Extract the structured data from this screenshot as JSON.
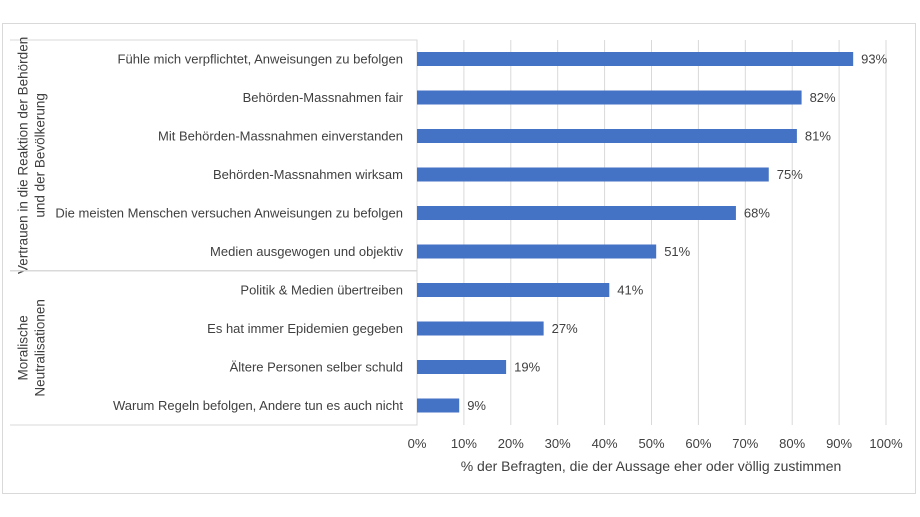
{
  "chart_data": {
    "type": "bar",
    "orientation": "horizontal",
    "groups": [
      {
        "label": "Vertrauen in die Reaktion der Behörden und der Bevölkerung",
        "label_lines": [
          "Vertrauen in die Reaktion der Behörden",
          "und der Bevölkerung"
        ],
        "count": 6
      },
      {
        "label": "Moralische Neutralisationen",
        "label_lines": [
          "Moralische",
          "Neutralisationen"
        ],
        "count": 4
      }
    ],
    "categories": [
      "Fühle mich verpflichtet, Anweisungen zu befolgen",
      "Behörden-Massnahmen fair",
      "Mit Behörden-Massnahmen einverstanden",
      "Behörden-Massnahmen wirksam",
      "Die meisten Menschen versuchen Anweisungen zu befolgen",
      "Medien ausgewogen und objektiv",
      "Politik & Medien übertreiben",
      "Es hat immer Epidemien gegeben",
      "Ältere Personen selber schuld",
      "Warum Regeln befolgen, Andere tun es auch nicht"
    ],
    "values": [
      93,
      82,
      81,
      75,
      68,
      51,
      41,
      27,
      19,
      9
    ],
    "data_labels": [
      "93%",
      "82%",
      "81%",
      "75%",
      "68%",
      "51%",
      "41%",
      "27%",
      "19%",
      "9%"
    ],
    "xlabel": "% der Befragten, die der Aussage eher oder völlig zustimmen",
    "xlim": [
      0,
      100
    ],
    "xticks": [
      "0%",
      "10%",
      "20%",
      "30%",
      "40%",
      "50%",
      "60%",
      "70%",
      "80%",
      "90%",
      "100%"
    ],
    "grid": "vertical",
    "legend": "none",
    "bar_color": "#4472c4"
  }
}
